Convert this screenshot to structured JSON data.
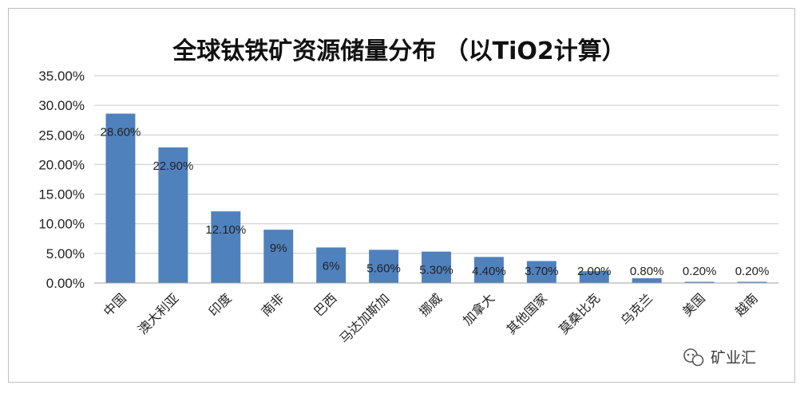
{
  "watermark": {
    "text": "矿业汇",
    "icon": "wechat-icon"
  },
  "chart_data": {
    "type": "bar",
    "title": "全球钛铁矿资源储量分布 （以TiO2计算）",
    "xlabel": "",
    "ylabel": "",
    "categories": [
      "中国",
      "澳大利亚",
      "印度",
      "南非",
      "巴西",
      "马达加斯加",
      "挪威",
      "加拿大",
      "其他国家",
      "莫桑比克",
      "乌克兰",
      "美国",
      "越南"
    ],
    "values": [
      28.6,
      22.9,
      12.1,
      9,
      6,
      5.6,
      5.3,
      4.4,
      3.7,
      2.0,
      0.8,
      0.2,
      0.2
    ],
    "data_labels": [
      "28.60%",
      "22.90%",
      "12.10%",
      "9%",
      "6%",
      "5.60%",
      "5.30%",
      "4.40%",
      "3.70%",
      "2.00%",
      "0.80%",
      "0.20%",
      "0.20%"
    ],
    "yticks": [
      0,
      5,
      10,
      15,
      20,
      25,
      30,
      35
    ],
    "ytick_labels": [
      "0.00%",
      "5.00%",
      "10.00%",
      "15.00%",
      "20.00%",
      "25.00%",
      "30.00%",
      "35.00%"
    ],
    "ylim": [
      0,
      35
    ],
    "grid": true,
    "legend": false,
    "bar_color": "#4f81bd"
  }
}
